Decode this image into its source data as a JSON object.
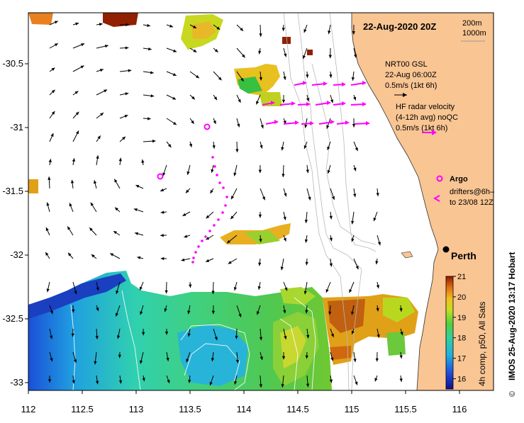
{
  "title": "22-Aug-2020 20Z",
  "scale_legend": {
    "line1": "200m",
    "line2": "1000m"
  },
  "sst_legend": {
    "title": "NRT00 GSL",
    "date": "22-Aug 06:00Z",
    "speed": "0.5m/s (1kt 6h)"
  },
  "hf_legend": {
    "title": "HF radar velocity",
    "subtitle": "(4-12h avg) noQC",
    "speed": "0.5m/s (1kt 6h)"
  },
  "argo_legend": {
    "label": "Argo"
  },
  "drifter_legend": {
    "line1": "drifters@6h–",
    "line2": "to 23/08 12Z"
  },
  "city": {
    "name": "Perth"
  },
  "colorbar": {
    "ticks": [
      "21",
      "20",
      "19",
      "18",
      "17",
      "16"
    ],
    "label": "4h comp, p50, All Sats",
    "min": 15.5,
    "max": 21
  },
  "credit": "IMOS 25-Aug-2020 13:17 Hobart",
  "copyright_symbol": "©",
  "x_axis": {
    "ticks": [
      "112",
      "112.5",
      "113",
      "113.5",
      "114",
      "114.5",
      "115",
      "115.5",
      "116"
    ]
  },
  "y_axis": {
    "ticks": [
      "-30.5",
      "-31",
      "-31.5",
      "-32",
      "-32.5",
      "-33"
    ]
  },
  "colors": {
    "land": "#f9c593",
    "hf_radar": "#ff00ff",
    "sst_low": "#1010a0",
    "sst_high": "#902000"
  }
}
